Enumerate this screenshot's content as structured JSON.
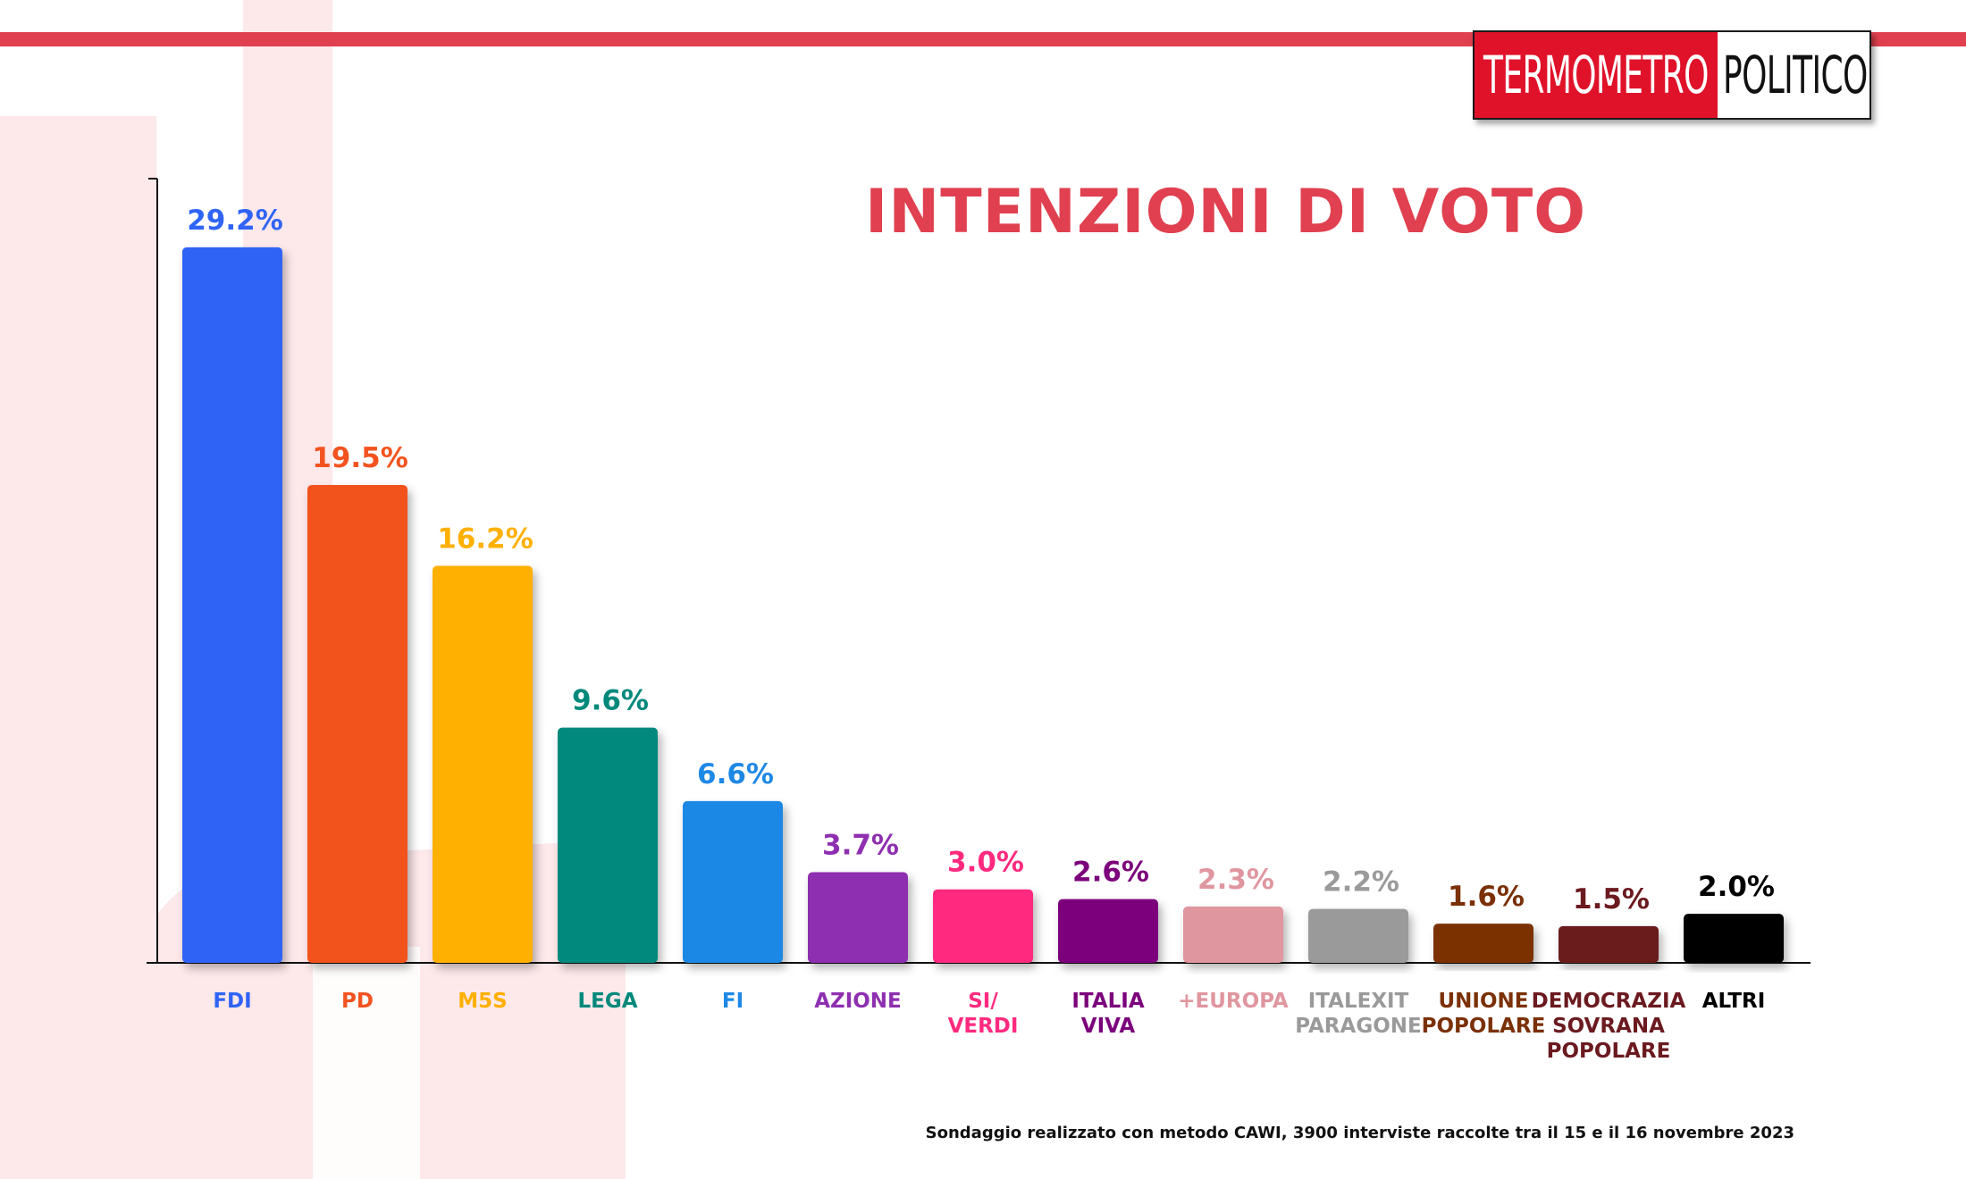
{
  "logo": {
    "left_text": "TERMOMETRO",
    "right_text": "POLITICO"
  },
  "colors": {
    "accent": "#e0404f",
    "logo_red": "#e0122a"
  },
  "footnote": "Sondaggio realizzato con metodo CAWI, 3900 interviste raccolte tra il 15 e il 16 novembre 2023",
  "chart_data": {
    "type": "bar",
    "title": "INTENZIONI DI VOTO",
    "xlabel": "",
    "ylabel": "",
    "ylim": [
      0,
      32
    ],
    "grid": false,
    "categories": [
      [
        "FDI"
      ],
      [
        "PD"
      ],
      [
        "M5S"
      ],
      [
        "LEGA"
      ],
      [
        "FI"
      ],
      [
        "AZIONE"
      ],
      [
        "SI/",
        "VERDI"
      ],
      [
        "ITALIA",
        "VIVA"
      ],
      [
        "+EUROPA"
      ],
      [
        "ITALEXIT",
        "PARAGONE"
      ],
      [
        "UNIONE",
        "POPOLARE"
      ],
      [
        "DEMOCRAZIA",
        "SOVRANA",
        "POPOLARE"
      ],
      [
        "ALTRI"
      ]
    ],
    "values": [
      29.2,
      19.5,
      16.2,
      9.6,
      6.6,
      3.7,
      3.0,
      2.6,
      2.3,
      2.2,
      1.6,
      1.5,
      2.0
    ],
    "value_labels": [
      "29.2%",
      "19.5%",
      "16.2%",
      "9.6%",
      "6.6%",
      "3.7%",
      "3.0%",
      "2.6%",
      "2.3%",
      "2.2%",
      "1.6%",
      "1.5%",
      "2.0%"
    ],
    "colors": [
      "#2f64f6",
      "#f2531f",
      "#ffb000",
      "#00897b",
      "#1e88e5",
      "#8e2fb0",
      "#ff2a7f",
      "#7b007b",
      "#e0969f",
      "#9a9a9a",
      "#7b3006",
      "#6b1a1f",
      "#000000"
    ]
  }
}
